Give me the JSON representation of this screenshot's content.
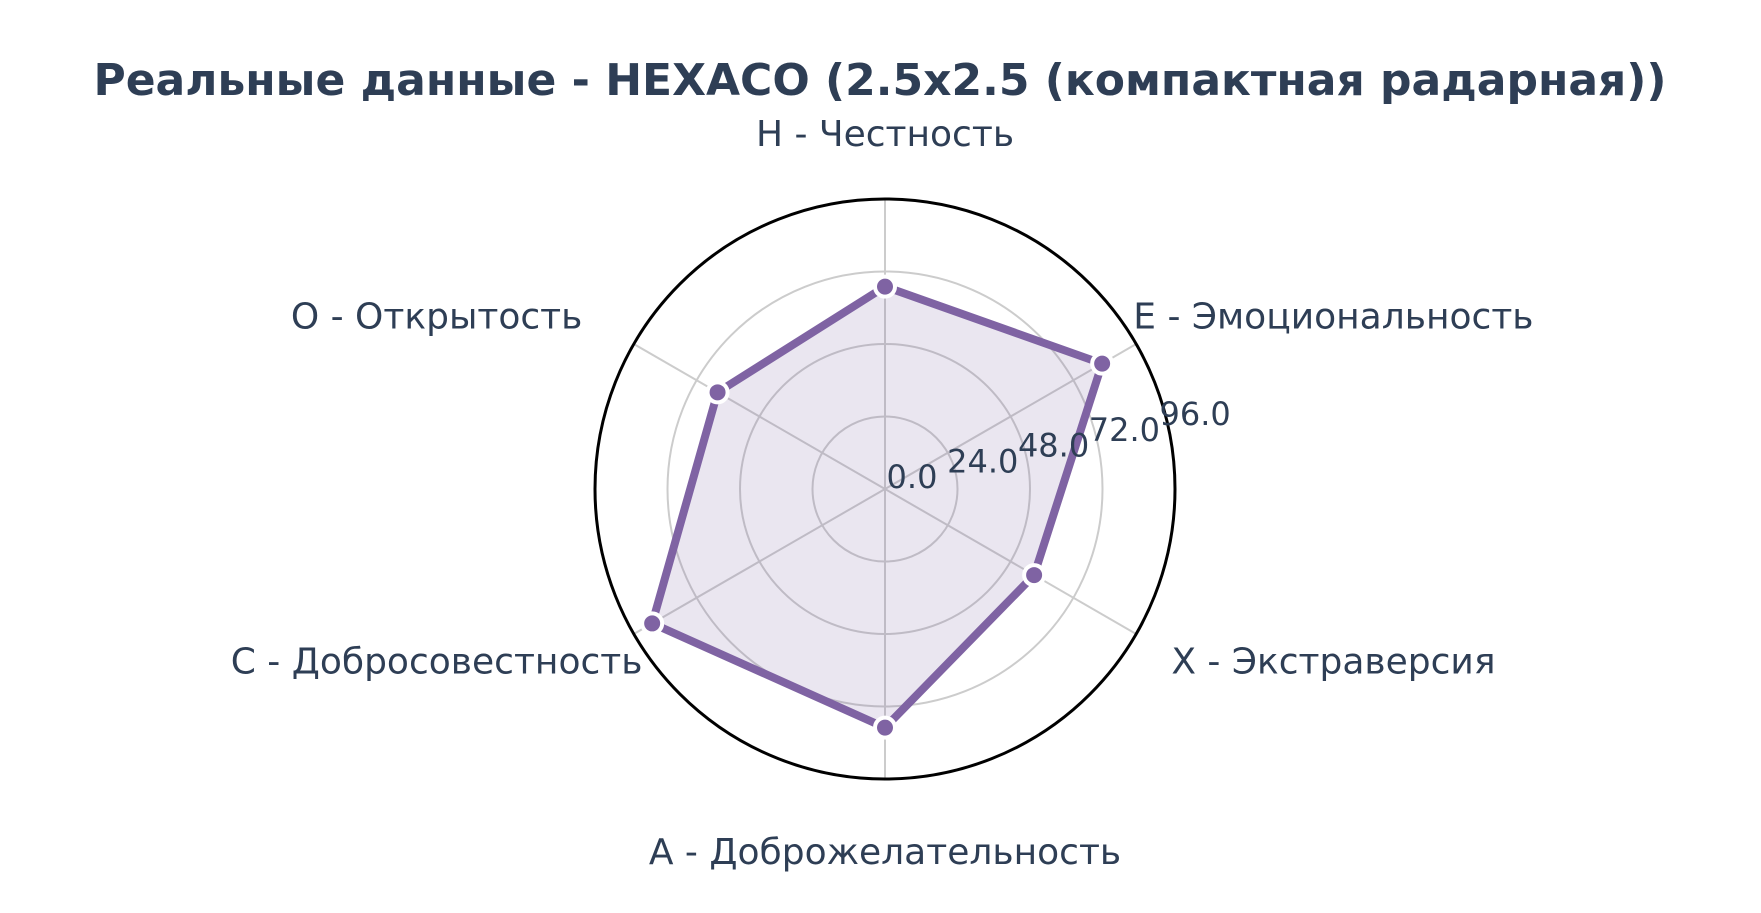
{
  "chart_data": {
    "type": "radar",
    "title": "Реальные данные - HEXACO (2.5x2.5 (компактная радарная))",
    "categories": [
      "H - Честность",
      "E - Эмоциональность",
      "X - Экстраверсия",
      "A - Доброжелательность",
      "C - Добросовестность",
      "O - Открытость"
    ],
    "series": [
      {
        "values": [
          67,
          83,
          57,
          79,
          89,
          64
        ],
        "color": "#7f63a3",
        "fill_color": "#7f63a3",
        "fill_opacity": 0.16
      }
    ],
    "rlim": [
      0,
      96
    ],
    "rticks": [
      0,
      24,
      48,
      72,
      96
    ],
    "rtick_labels": [
      "0.0",
      "24.0",
      "48.0",
      "72.0",
      "96.0"
    ],
    "grid": true,
    "colors": {
      "text": "#2e3e55",
      "grid": "#cccccc",
      "outline": "#000000"
    }
  }
}
